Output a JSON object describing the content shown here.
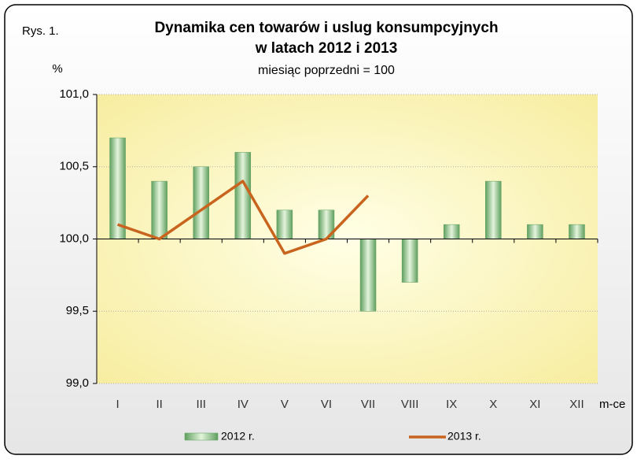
{
  "chart_data": {
    "type": "bar_line",
    "label": "Rys. 1.",
    "title": [
      "Dynamika cen towarów i uslug konsumpcyjnych",
      "w latach 2012 i 2013"
    ],
    "subtitle": "miesiąc poprzedni = 100",
    "y_label": "%",
    "x_label": "m-ce",
    "categories": [
      "I",
      "II",
      "III",
      "IV",
      "V",
      "VI",
      "VII",
      "VIII",
      "IX",
      "X",
      "XI",
      "XII"
    ],
    "series": [
      {
        "name": "2012 r.",
        "type": "bar",
        "color": "#7fbf7f",
        "values": [
          100.7,
          100.4,
          100.5,
          100.6,
          100.2,
          100.2,
          99.5,
          99.7,
          100.1,
          100.4,
          100.1,
          100.1
        ]
      },
      {
        "name": "2013 r.",
        "type": "line",
        "color": "#c8641e",
        "values": [
          100.1,
          100.0,
          100.2,
          100.4,
          99.9,
          100.0,
          100.3,
          null,
          null,
          null,
          null,
          null
        ]
      }
    ],
    "ylim": [
      99,
      101
    ],
    "yticks": [
      {
        "value": 99,
        "label": "99,0"
      },
      {
        "value": 99.5,
        "label": "99,5"
      },
      {
        "value": 100,
        "label": "100,0"
      },
      {
        "value": 100.5,
        "label": "100,5"
      },
      {
        "value": 101,
        "label": "101,0"
      }
    ],
    "xaxis_crosses": 100,
    "grid": true
  }
}
